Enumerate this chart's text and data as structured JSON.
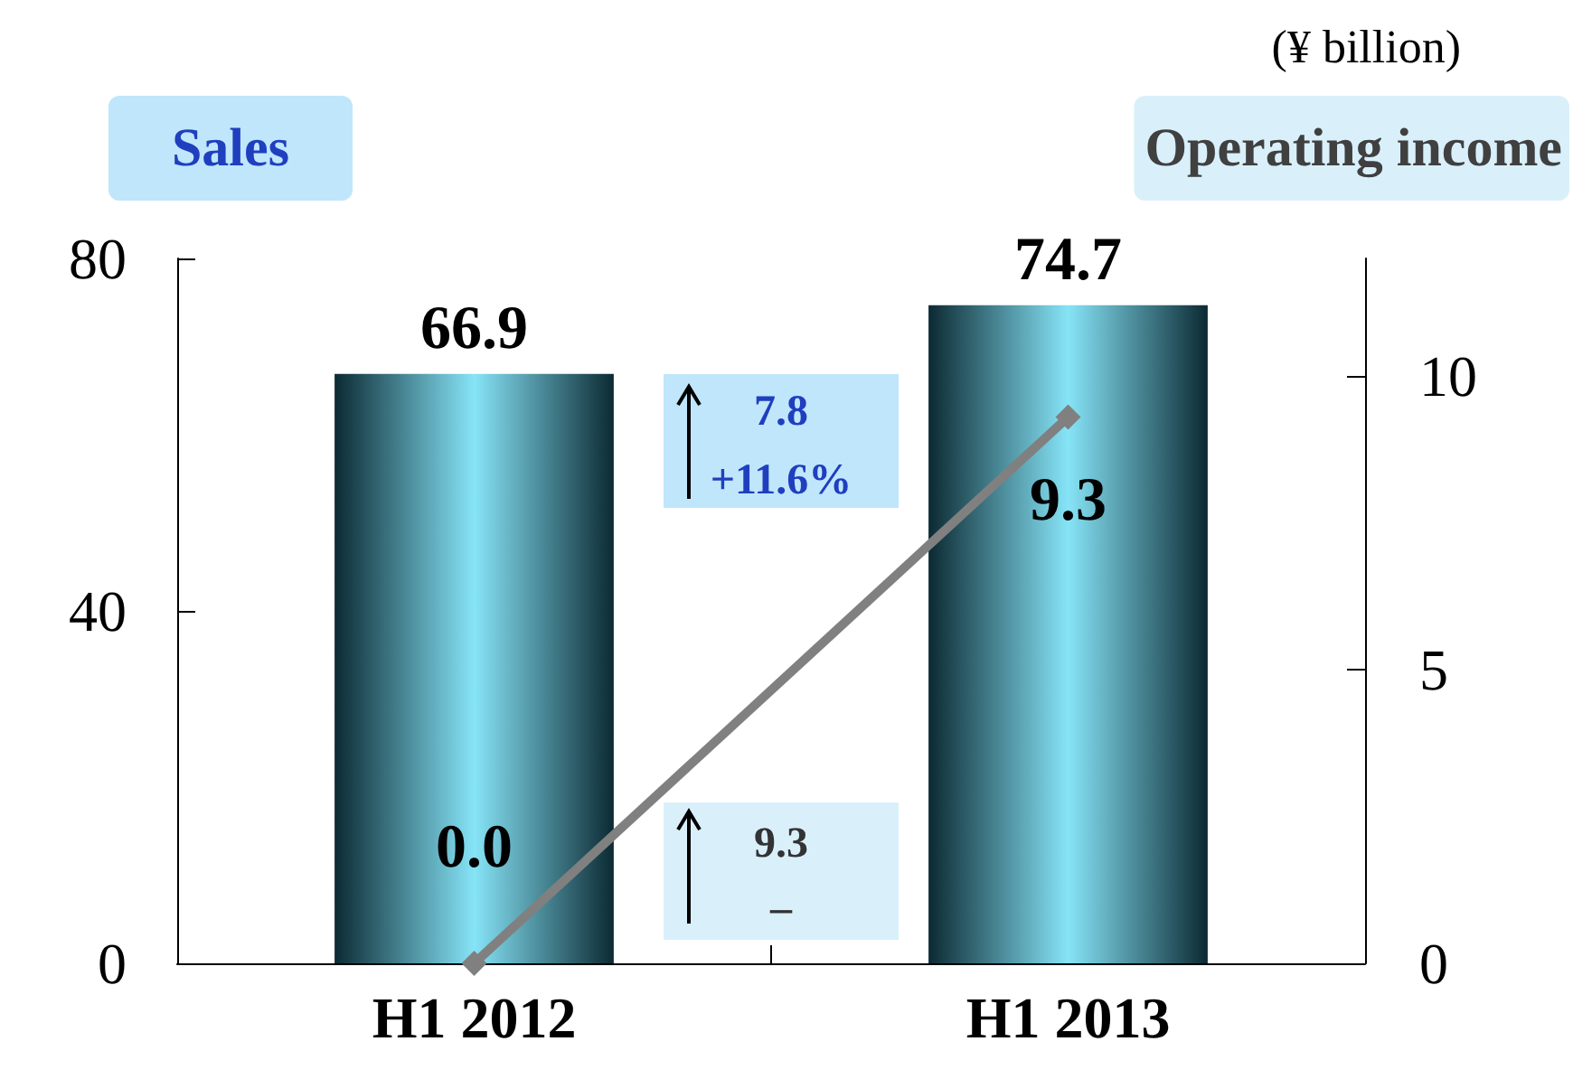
{
  "chart_data": {
    "type": "bar",
    "categories": [
      "H1 2012",
      "H1 2013"
    ],
    "series": [
      {
        "color": "#86e4f7",
        "values": [
          66.9,
          74.7
        ],
        "value_labels": [
          "66.9",
          "74.7"
        ]
      },
      {
        "type": "line",
        "axis": "y2",
        "color": "#808080",
        "values": [
          0.0,
          9.3
        ],
        "value_labels": [
          "0.0",
          "9.3"
        ]
      }
    ],
    "ylabel": "Sales",
    "y2label": "Operating income",
    "ylim": [
      0,
      80
    ],
    "yticks": [
      0,
      40,
      80
    ],
    "y2lim": [
      0,
      12
    ],
    "y2ticks": [
      0,
      5,
      10
    ],
    "annotations": [
      "(¥ billion)",
      "7.8",
      "+11.6%",
      "9.3",
      "–"
    ],
    "grid": false,
    "marker": "diamond",
    "line_style": "solid"
  }
}
